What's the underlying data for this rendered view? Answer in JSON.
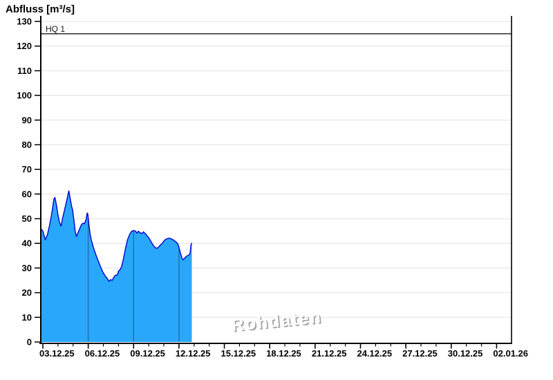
{
  "header": {
    "title": "Abfluss [m³/s]"
  },
  "watermark": {
    "text": "Rohdaten"
  },
  "threshold": {
    "label": "HQ 1",
    "value": 125
  },
  "colors": {
    "area_fill": "#29A7FA",
    "area_stroke": "#0202CC",
    "segment_seam": "#206EA9",
    "gridline": "#ECECEC",
    "axis": "#000000",
    "threshold_line": "#000000",
    "watermark_gray": "#A0A0A0",
    "watermark_light": "#FFFFFF"
  },
  "chart_data": {
    "type": "area",
    "title": "Abfluss [m³/s]",
    "ylabel": "Abfluss [m³/s]",
    "xlabel": "",
    "ylim": [
      0,
      130
    ],
    "ytick_step": 10,
    "y_tick_labels": [
      "0",
      "10",
      "20",
      "30",
      "40",
      "50",
      "60",
      "70",
      "80",
      "90",
      "100",
      "110",
      "120",
      "130"
    ],
    "x_tick_labels": [
      "03.12.25",
      "06.12.25",
      "09.12.25",
      "12.12.25",
      "15.12.25",
      "18.12.25",
      "21.12.25",
      "24.12.25",
      "27.12.25",
      "30.12.25",
      "02.01.26"
    ],
    "x_tick_days": [
      0,
      3,
      6,
      9,
      12,
      15,
      18,
      21,
      24,
      27,
      30
    ],
    "x_minor_tick_interval_days": 1,
    "xlim_days": [
      -0.14,
      31
    ],
    "grid": "horizontal-light",
    "legend_position": "none",
    "annotations": [
      {
        "type": "threshold-line",
        "label": "HQ 1",
        "y": 125
      },
      {
        "type": "watermark",
        "text": "Rohdaten"
      }
    ],
    "segment_boundaries_days": [
      3,
      6,
      9
    ],
    "series": [
      {
        "name": "Abfluss Rohdaten",
        "unit": "m³/s",
        "x_unit": "days since 03.12.25 00:00",
        "points_day_value": [
          [
            -0.12,
            45.8
          ],
          [
            0.0,
            45.0
          ],
          [
            0.08,
            43.2
          ],
          [
            0.16,
            41.5
          ],
          [
            0.3,
            43.5
          ],
          [
            0.45,
            47.5
          ],
          [
            0.6,
            52.5
          ],
          [
            0.73,
            58.0
          ],
          [
            0.8,
            58.6
          ],
          [
            0.9,
            55.5
          ],
          [
            1.0,
            51.5
          ],
          [
            1.1,
            48.5
          ],
          [
            1.2,
            47.0
          ],
          [
            1.3,
            50.0
          ],
          [
            1.45,
            54.0
          ],
          [
            1.6,
            58.0
          ],
          [
            1.72,
            61.3
          ],
          [
            1.8,
            58.5
          ],
          [
            1.9,
            55.0
          ],
          [
            1.97,
            53.5
          ],
          [
            2.05,
            49.5
          ],
          [
            2.15,
            44.5
          ],
          [
            2.22,
            42.8
          ],
          [
            2.3,
            44.0
          ],
          [
            2.42,
            45.7
          ],
          [
            2.55,
            47.6
          ],
          [
            2.65,
            48.2
          ],
          [
            2.75,
            48.0
          ],
          [
            2.85,
            49.5
          ],
          [
            2.93,
            52.3
          ],
          [
            2.97,
            52.0
          ],
          [
            3.05,
            47.5
          ],
          [
            3.12,
            44.0
          ],
          [
            3.2,
            41.5
          ],
          [
            3.35,
            38.2
          ],
          [
            3.5,
            35.5
          ],
          [
            3.65,
            33.0
          ],
          [
            3.8,
            30.8
          ],
          [
            3.95,
            28.6
          ],
          [
            4.1,
            27.0
          ],
          [
            4.25,
            25.8
          ],
          [
            4.38,
            24.6
          ],
          [
            4.48,
            25.3
          ],
          [
            4.58,
            25.0
          ],
          [
            4.7,
            26.3
          ],
          [
            4.8,
            27.1
          ],
          [
            4.93,
            27.2
          ],
          [
            5.0,
            28.8
          ],
          [
            5.1,
            29.3
          ],
          [
            5.2,
            30.5
          ],
          [
            5.3,
            33.0
          ],
          [
            5.45,
            37.5
          ],
          [
            5.6,
            41.5
          ],
          [
            5.75,
            43.8
          ],
          [
            5.88,
            45.0
          ],
          [
            6.0,
            45.2
          ],
          [
            6.12,
            45.0
          ],
          [
            6.22,
            44.2
          ],
          [
            6.32,
            44.9
          ],
          [
            6.45,
            44.2
          ],
          [
            6.55,
            44.0
          ],
          [
            6.65,
            44.7
          ],
          [
            6.8,
            43.8
          ],
          [
            6.92,
            42.9
          ],
          [
            7.05,
            41.8
          ],
          [
            7.2,
            40.2
          ],
          [
            7.35,
            38.8
          ],
          [
            7.5,
            38.0
          ],
          [
            7.6,
            38.2
          ],
          [
            7.75,
            39.2
          ],
          [
            7.9,
            40.1
          ],
          [
            8.05,
            41.3
          ],
          [
            8.2,
            41.9
          ],
          [
            8.35,
            42.1
          ],
          [
            8.5,
            41.8
          ],
          [
            8.65,
            41.3
          ],
          [
            8.8,
            40.6
          ],
          [
            8.92,
            39.8
          ],
          [
            9.0,
            38.4
          ],
          [
            9.1,
            36.0
          ],
          [
            9.2,
            34.0
          ],
          [
            9.28,
            33.3
          ],
          [
            9.4,
            34.2
          ],
          [
            9.5,
            34.8
          ],
          [
            9.6,
            35.1
          ],
          [
            9.68,
            35.4
          ],
          [
            9.74,
            36.2
          ],
          [
            9.79,
            39.4
          ],
          [
            9.85,
            40.2
          ]
        ]
      }
    ]
  }
}
